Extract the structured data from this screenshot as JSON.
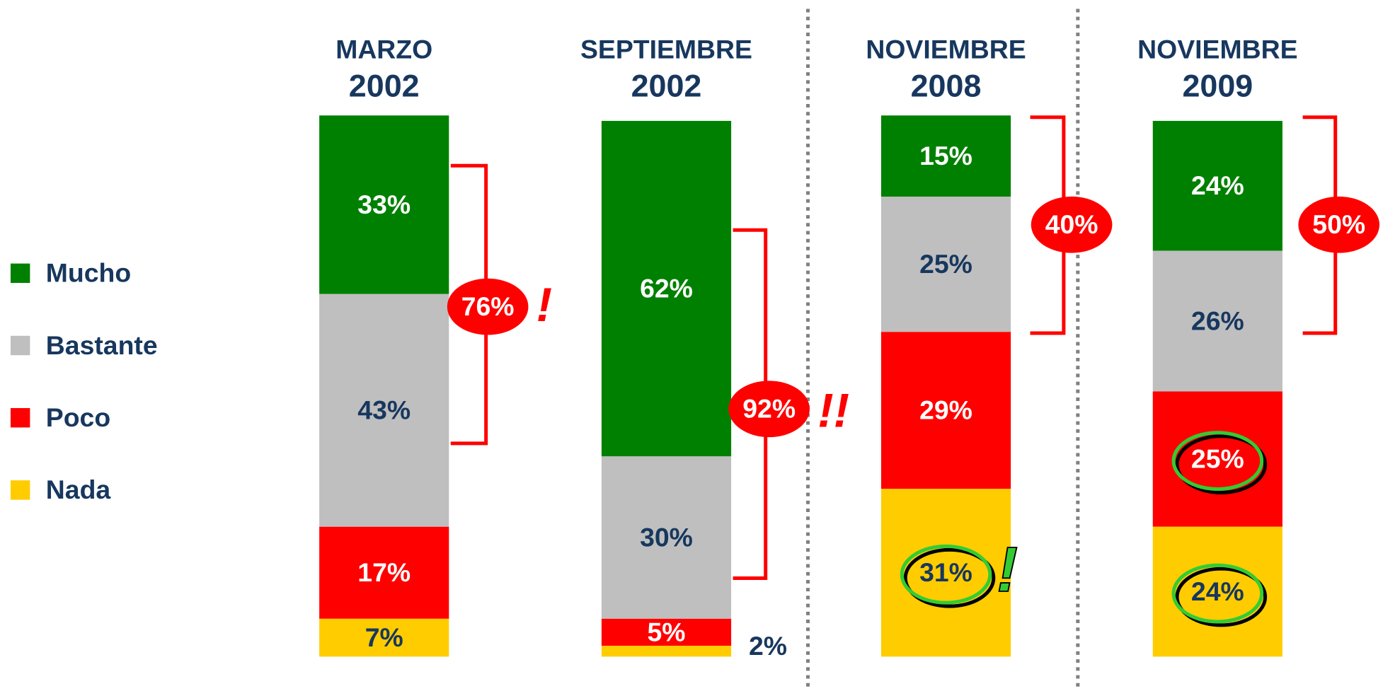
{
  "chart_data": {
    "type": "stacked_bar",
    "categories": [
      "MARZO 2002",
      "SEPTIEMBRE 2002",
      "NOVIEMBRE 2008",
      "NOVIEMBRE 2009"
    ],
    "series": [
      {
        "name": "Mucho",
        "color": "#008000",
        "label_color": "#ffffff",
        "values": [
          33,
          62,
          15,
          24
        ],
        "value_labels": [
          "33%",
          "62%",
          "15%",
          "24%"
        ]
      },
      {
        "name": "Bastante",
        "color": "#bfbfbf",
        "label_color": "#17375e",
        "values": [
          43,
          30,
          25,
          26
        ],
        "value_labels": [
          "43%",
          "30%",
          "25%",
          "26%"
        ]
      },
      {
        "name": "Poco",
        "color": "#ff0000",
        "label_color": "#ffffff",
        "values": [
          17,
          5,
          29,
          25
        ],
        "value_labels": [
          "17%",
          "5%",
          "29%",
          "25%"
        ]
      },
      {
        "name": "Nada",
        "color": "#ffcc00",
        "label_color": "#17375e",
        "values": [
          7,
          2,
          31,
          24
        ],
        "value_labels": [
          "7%",
          "2%",
          "31%",
          "24%"
        ]
      }
    ],
    "ylim": [
      0,
      100
    ],
    "annotations": [
      {
        "text": "76%",
        "exclaim": "!"
      },
      {
        "text": "92%",
        "exclaim": "!!"
      },
      {
        "text": "40%"
      },
      {
        "text": "50%"
      }
    ],
    "highlight_exclaim": "!"
  }
}
